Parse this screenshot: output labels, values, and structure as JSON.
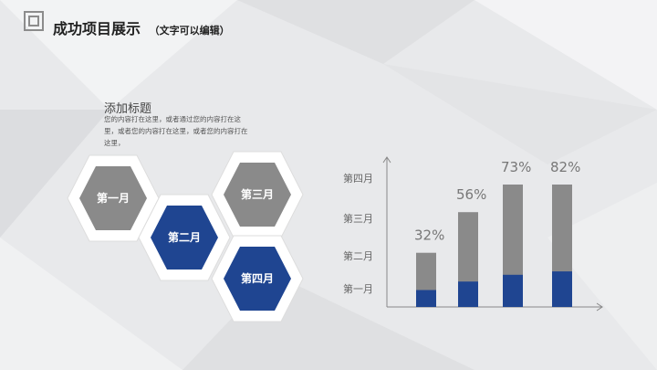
{
  "header": {
    "title": "成功项目展示",
    "subtitle": "（文字可以编辑）"
  },
  "content": {
    "heading": "添加标题",
    "description": "您的内容打在这里，或者通过您的内容打在这里，或者您的内容打在这里，或者您的内容打在这里，"
  },
  "hexagons": [
    {
      "label": "第一月",
      "color": "#8a8a8a"
    },
    {
      "label": "第二月",
      "color": "#1f4591"
    },
    {
      "label": "第三月",
      "color": "#8a8a8a"
    },
    {
      "label": "第四月",
      "color": "#1f4591"
    }
  ],
  "colors": {
    "blue": "#1f4591",
    "gray": "#8a8a8a"
  },
  "chart_data": {
    "type": "bar",
    "categories": [
      "",
      "",
      "",
      ""
    ],
    "y_tick_labels": [
      "第一月",
      "第二月",
      "第三月",
      "第四月"
    ],
    "value_labels": [
      "32%",
      "56%",
      "73%",
      "82%"
    ],
    "series": [
      {
        "values": [
          32,
          56,
          73,
          82
        ],
        "color": "#8a8a8a"
      },
      {
        "values": [
          10,
          15,
          19,
          21
        ],
        "color": "#1f4591"
      }
    ],
    "ylim": [
      0,
      100
    ]
  }
}
